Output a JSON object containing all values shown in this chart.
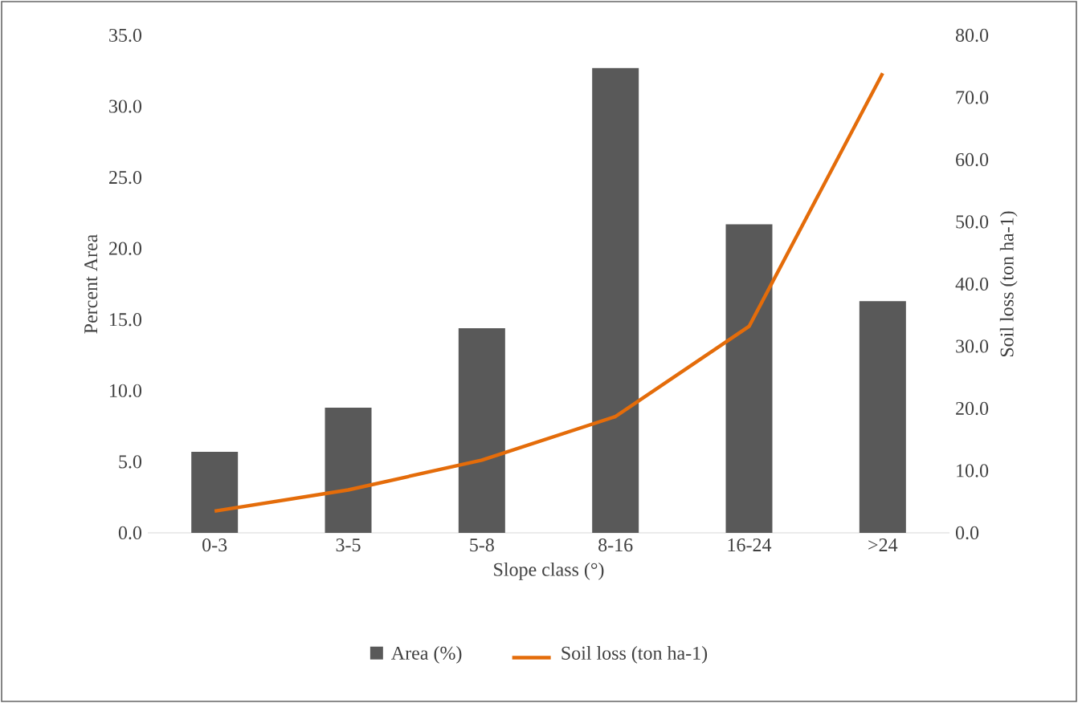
{
  "chart_data": {
    "type": "bar",
    "xlabel": "Slope class (°)",
    "ylabel": "Percent Area",
    "y2label": "Soil loss (ton ha-1)",
    "categories": [
      "0-3",
      "3-5",
      "5-8",
      "8-16",
      "16-24",
      ">24"
    ],
    "series": [
      {
        "name": "Area (%)",
        "color": "#595959",
        "values": [
          5.7,
          8.8,
          14.4,
          32.7,
          21.7,
          16.3
        ]
      },
      {
        "name": "Soil loss (ton ha-1)",
        "type": "line",
        "axis": "y2",
        "color": "#e46c0a",
        "values": [
          3.5,
          6.9,
          11.7,
          18.7,
          33.2,
          73.9
        ]
      }
    ],
    "ylim": [
      0,
      35
    ],
    "yticks": [
      {
        "value": 0,
        "label": "0.0"
      },
      {
        "value": 5,
        "label": "5.0"
      },
      {
        "value": 10,
        "label": "10.0"
      },
      {
        "value": 15,
        "label": "15.0"
      },
      {
        "value": 20,
        "label": "20.0"
      },
      {
        "value": 25,
        "label": "25.0"
      },
      {
        "value": 30,
        "label": "30.0"
      },
      {
        "value": 35,
        "label": "35.0"
      }
    ],
    "y2lim": [
      0,
      80
    ],
    "y2ticks": [
      {
        "value": 0,
        "label": "0.0"
      },
      {
        "value": 10,
        "label": "10.0"
      },
      {
        "value": 20,
        "label": "20.0"
      },
      {
        "value": 30,
        "label": "30.0"
      },
      {
        "value": 40,
        "label": "40.0"
      },
      {
        "value": 50,
        "label": "50.0"
      },
      {
        "value": 60,
        "label": "60.0"
      },
      {
        "value": 70,
        "label": "70.0"
      },
      {
        "value": 80,
        "label": "80.0"
      }
    ],
    "grid": false,
    "legend": "bottom"
  }
}
